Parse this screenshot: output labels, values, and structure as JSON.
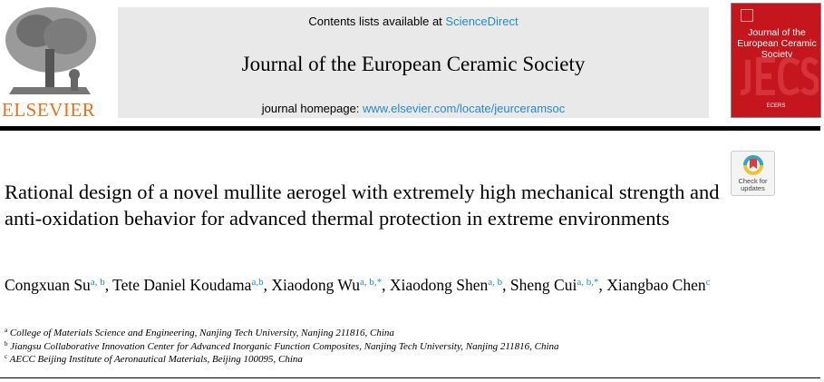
{
  "header": {
    "publisher": "ELSEVIER",
    "contents_prefix": "Contents lists available at ",
    "contents_link": "ScienceDirect",
    "journal_title": "Journal of the European Ceramic Society",
    "homepage_prefix": "journal homepage: ",
    "homepage_link": "www.elsevier.com/locate/jeurceramsoc",
    "cover_title": "Journal of the European Ceramic Society",
    "cover_society": "ECERS"
  },
  "check_updates": {
    "label": "Check for updates"
  },
  "article": {
    "title": "Rational design of a novel mullite aerogel with extremely high mechanical strength and anti-oxidation behavior for advanced thermal protection in extreme environments",
    "authors": [
      {
        "name": "Congxuan Su",
        "sup": "a, b",
        "sep": ", "
      },
      {
        "name": "Tete Daniel Koudama",
        "sup": "a,b",
        "sep": ", "
      },
      {
        "name": "Xiaodong Wu",
        "sup": "a, b,*",
        "sep": ", "
      },
      {
        "name": "Xiaodong Shen",
        "sup": "a, b",
        "sep": ", "
      },
      {
        "name": "Sheng Cui",
        "sup": "a, b,*",
        "sep": ", "
      },
      {
        "name": "Xiangbao Chen",
        "sup": "c",
        "sep": ""
      }
    ],
    "affiliations": [
      {
        "key": "a",
        "text": "College of Materials Science and Engineering, Nanjing Tech University, Nanjing 211816, China"
      },
      {
        "key": "b",
        "text": "Jiangsu Collaborative Innovation Center for Advanced Inorganic Function Composites, Nanjing Tech University, Nanjing 211816, China"
      },
      {
        "key": "c",
        "text": "AECC Beijing Institute of Aeronautical Materials, Beijing 100095, China"
      }
    ]
  },
  "colors": {
    "link": "#1e8ad6",
    "elsevier_orange": "#e8711c",
    "cover_red": "#c4161c",
    "banner_gray": "#e9e9e9"
  }
}
